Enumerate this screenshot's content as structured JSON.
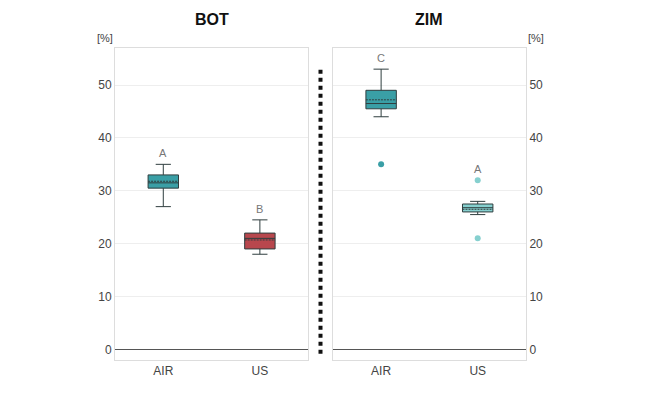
{
  "chart_data": [
    {
      "type": "box",
      "title": "BOT",
      "y_label": "[%]",
      "categories": [
        "AIR",
        "US"
      ],
      "ylim": [
        -2,
        57
      ],
      "yticks": [
        0,
        10,
        20,
        30,
        40,
        50
      ],
      "grid": true,
      "boxes": [
        {
          "category": "AIR",
          "color": "#3a9fa6",
          "lowerfence": 27,
          "q1": 30.5,
          "median": 31.5,
          "q3": 33,
          "upperfence": 35,
          "mean": 31.8,
          "outliers": [],
          "label": "A"
        },
        {
          "category": "US",
          "color": "#b8474d",
          "lowerfence": 18,
          "q1": 19,
          "median": 21,
          "q3": 22,
          "upperfence": 24.5,
          "mean": 20.7,
          "outliers": [],
          "label": "B"
        }
      ]
    },
    {
      "type": "box",
      "title": "ZIM",
      "y_label": "[%]",
      "categories": [
        "AIR",
        "US"
      ],
      "ylim": [
        -2,
        57
      ],
      "yticks": [
        0,
        10,
        20,
        30,
        40,
        50
      ],
      "grid": true,
      "boxes": [
        {
          "category": "AIR",
          "color": "#3a9fa6",
          "lowerfence": 44,
          "q1": 45.5,
          "median": 46.5,
          "q3": 49,
          "upperfence": 53,
          "mean": 47.2,
          "outliers": [
            35
          ],
          "label": "C"
        },
        {
          "category": "US",
          "color": "#86d0cf",
          "lowerfence": 25.5,
          "q1": 26,
          "median": 26.8,
          "q3": 27.5,
          "upperfence": 28,
          "mean": 26.5,
          "outliers": [
            32,
            21
          ],
          "label": "A"
        }
      ]
    }
  ]
}
